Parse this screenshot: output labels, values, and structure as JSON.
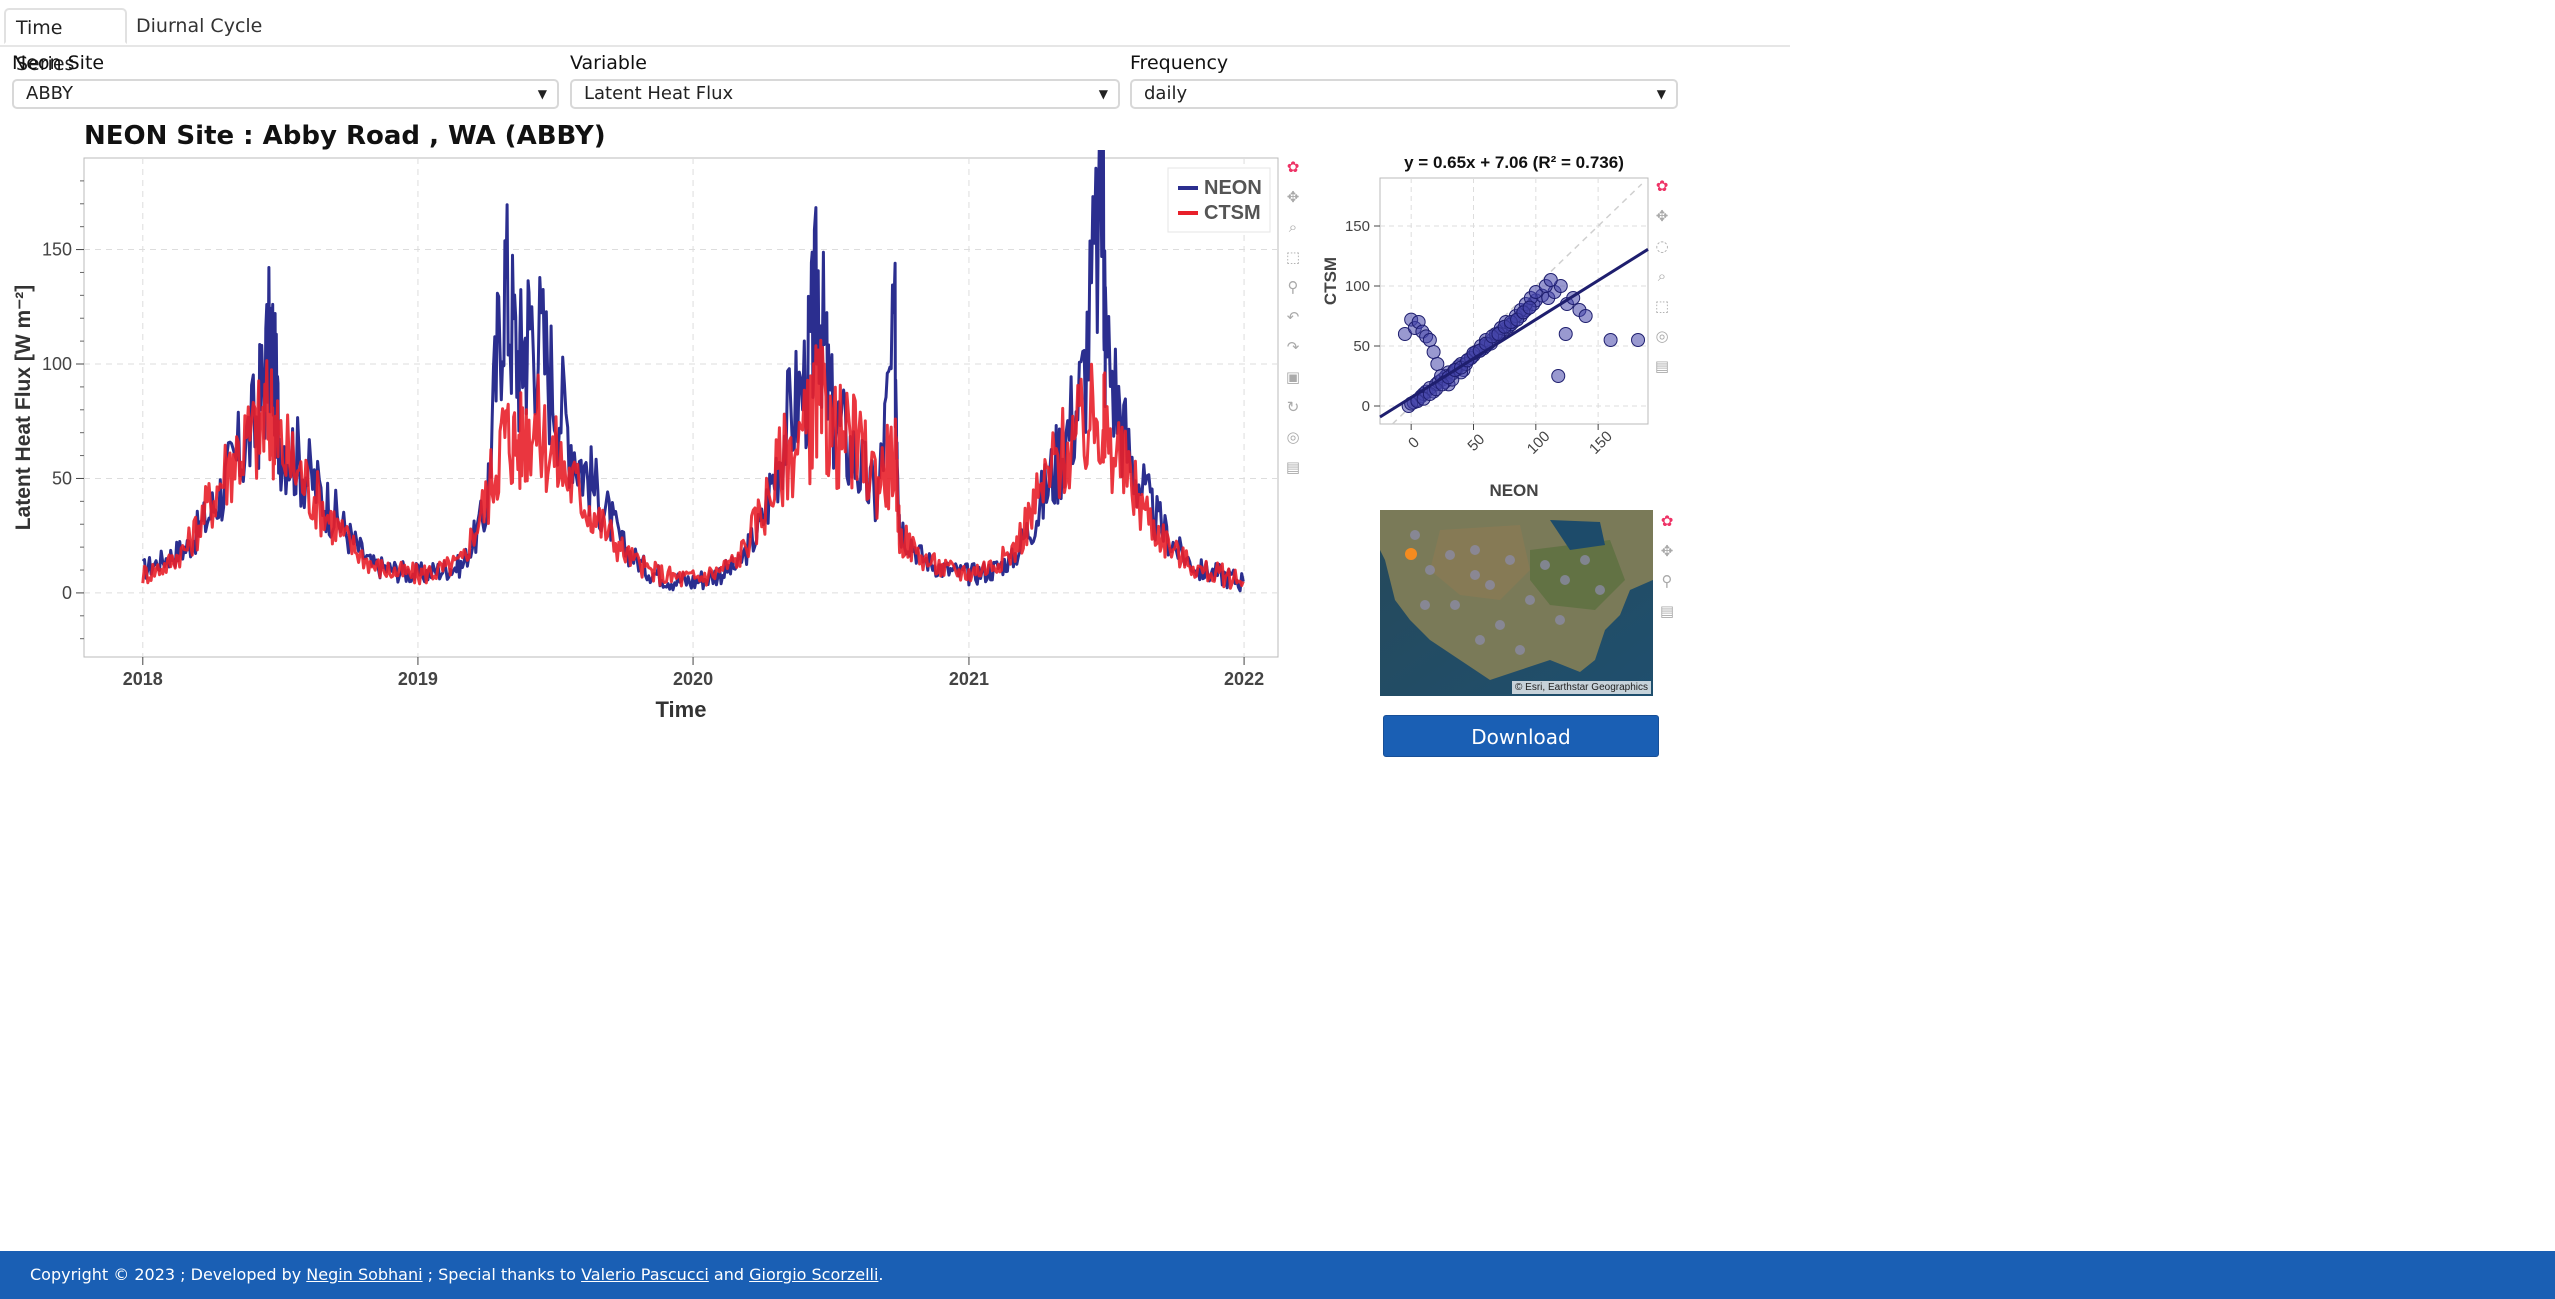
{
  "tabs": [
    {
      "label": "Time Series",
      "active": true
    },
    {
      "label": "Diurnal Cycle",
      "active": false
    }
  ],
  "controls": {
    "site": {
      "label": "Neon Site",
      "value": "ABBY"
    },
    "variable": {
      "label": "Variable",
      "value": "Latent Heat Flux"
    },
    "frequency": {
      "label": "Frequency",
      "value": "daily"
    }
  },
  "main_plot": {
    "title": "NEON Site : Abby Road , WA (ABBY)",
    "xlabel": "Time",
    "ylabel": "Latent Heat Flux [W m⁻²]",
    "legend": [
      "NEON",
      "CTSM"
    ]
  },
  "scatter_plot": {
    "title": "y = 0.65x + 7.06 (R² = 0.736)",
    "xlabel": "NEON",
    "ylabel": "CTSM"
  },
  "map": {
    "attribution": "© Esri, Earthstar Geographics"
  },
  "download": {
    "label": "Download"
  },
  "footer": {
    "prefix": "Copyright © 2023 ; Developed by ",
    "author": "Negin Sobhani",
    "middle": " ; Special thanks to ",
    "thanks1": "Valerio Pascucci",
    "and": " and ",
    "thanks2": "Giorgio Scorzelli",
    "suffix": "."
  },
  "colors": {
    "neon": "#2b2e8f",
    "ctsm": "#e8202a",
    "accent": "#1a5fb4",
    "toolbar_active": "#26b5e6"
  },
  "icons": [
    "bokeh-logo-icon",
    "pan-icon",
    "box-zoom-icon",
    "wheel-zoom-icon",
    "box-select-icon",
    "lasso-icon",
    "undo-icon",
    "redo-icon",
    "save-icon",
    "reset-icon",
    "crosshair-icon",
    "hover-icon"
  ],
  "chart_data": [
    {
      "type": "line",
      "title": "NEON Site : Abby Road , WA (ABBY)",
      "xlabel": "Time",
      "ylabel": "Latent Heat Flux [W m⁻²]",
      "xlim": [
        "2017-10-15",
        "2022-02-15"
      ],
      "ylim": [
        -28,
        190
      ],
      "x_ticks": [
        "2018",
        "2019",
        "2020",
        "2021",
        "2022"
      ],
      "y_ticks": [
        0,
        50,
        100,
        150
      ],
      "grid": true,
      "legend_position": "top-right",
      "series": [
        {
          "name": "NEON",
          "color": "#2b2e8f",
          "x": [
            "2018-01-01",
            "2018-02-01",
            "2018-03-01",
            "2018-04-01",
            "2018-05-01",
            "2018-06-01",
            "2018-06-20",
            "2018-07-01",
            "2018-08-01",
            "2018-09-01",
            "2018-10-01",
            "2018-11-01",
            "2018-12-01",
            "2019-01-01",
            "2019-02-01",
            "2019-03-01",
            "2019-04-01",
            "2019-04-25",
            "2019-05-15",
            "2019-06-01",
            "2019-07-01",
            "2019-08-01",
            "2019-09-01",
            "2019-10-01",
            "2019-11-01",
            "2019-12-01",
            "2020-01-01",
            "2020-02-01",
            "2020-03-01",
            "2020-04-01",
            "2020-05-01",
            "2020-06-01",
            "2020-06-15",
            "2020-07-01",
            "2020-08-01",
            "2020-09-01",
            "2020-09-25",
            "2020-10-01",
            "2020-11-01",
            "2020-12-01",
            "2021-01-01",
            "2021-02-01",
            "2021-03-01",
            "2021-04-01",
            "2021-05-01",
            "2021-06-01",
            "2021-06-28",
            "2021-07-01",
            "2021-08-01",
            "2021-09-01",
            "2021-10-01",
            "2021-11-01",
            "2021-12-01",
            "2021-12-31"
          ],
          "y": [
            10,
            15,
            20,
            35,
            55,
            75,
            112,
            70,
            55,
            40,
            25,
            12,
            10,
            8,
            10,
            12,
            35,
            140,
            100,
            120,
            90,
            60,
            40,
            20,
            10,
            6,
            5,
            8,
            12,
            30,
            70,
            95,
            135,
            80,
            60,
            40,
            110,
            30,
            15,
            10,
            8,
            10,
            15,
            35,
            60,
            90,
            178,
            110,
            60,
            35,
            20,
            10,
            8,
            5
          ]
        },
        {
          "name": "CTSM",
          "color": "#e8202a",
          "x": [
            "2018-01-01",
            "2018-02-01",
            "2018-03-01",
            "2018-04-01",
            "2018-05-01",
            "2018-06-01",
            "2018-06-20",
            "2018-07-01",
            "2018-08-01",
            "2018-09-01",
            "2018-10-01",
            "2018-11-01",
            "2018-12-01",
            "2019-01-01",
            "2019-02-01",
            "2019-03-01",
            "2019-04-01",
            "2019-04-25",
            "2019-05-15",
            "2019-06-01",
            "2019-07-01",
            "2019-08-01",
            "2019-09-01",
            "2019-10-01",
            "2019-11-01",
            "2019-12-01",
            "2020-01-01",
            "2020-02-01",
            "2020-03-01",
            "2020-04-01",
            "2020-05-01",
            "2020-06-01",
            "2020-06-15",
            "2020-07-01",
            "2020-08-01",
            "2020-09-01",
            "2020-09-25",
            "2020-10-01",
            "2020-11-01",
            "2020-12-01",
            "2021-01-01",
            "2021-02-01",
            "2021-03-01",
            "2021-04-01",
            "2021-05-01",
            "2021-06-01",
            "2021-06-28",
            "2021-07-01",
            "2021-08-01",
            "2021-09-01",
            "2021-10-01",
            "2021-11-01",
            "2021-12-01",
            "2021-12-31"
          ],
          "y": [
            8,
            12,
            20,
            40,
            60,
            70,
            80,
            65,
            50,
            35,
            22,
            12,
            9,
            8,
            10,
            14,
            40,
            70,
            65,
            75,
            60,
            45,
            30,
            18,
            10,
            7,
            6,
            9,
            15,
            35,
            60,
            70,
            85,
            70,
            65,
            50,
            60,
            25,
            15,
            10,
            9,
            12,
            18,
            40,
            60,
            70,
            80,
            70,
            50,
            30,
            18,
            10,
            8,
            5
          ]
        }
      ]
    },
    {
      "type": "scatter",
      "title": "y = 0.65x + 7.06 (R² = 0.736)",
      "xlabel": "NEON",
      "ylabel": "CTSM",
      "xlim": [
        -25,
        190
      ],
      "ylim": [
        -15,
        190
      ],
      "x_ticks": [
        0,
        50,
        100,
        150
      ],
      "y_ticks": [
        0,
        50,
        100,
        150
      ],
      "grid": true,
      "fit": {
        "slope": 0.65,
        "intercept": 7.06
      },
      "points": {
        "x": [
          -2,
          2,
          5,
          8,
          10,
          12,
          15,
          18,
          20,
          22,
          25,
          28,
          30,
          33,
          35,
          38,
          40,
          42,
          45,
          48,
          50,
          52,
          55,
          58,
          60,
          62,
          65,
          68,
          70,
          72,
          75,
          78,
          80,
          82,
          85,
          88,
          90,
          92,
          95,
          98,
          100,
          105,
          110,
          115,
          120,
          125,
          130,
          135,
          140,
          160,
          -5,
          0,
          3,
          6,
          9,
          12,
          15,
          18,
          21,
          24,
          27,
          30,
          33,
          36,
          40,
          44,
          48,
          52,
          56,
          60,
          64,
          68,
          72,
          76,
          80,
          84,
          88,
          92,
          96,
          100,
          108,
          112,
          118,
          124,
          182,
          0,
          5,
          10,
          15,
          20,
          25,
          30,
          35,
          40,
          45,
          50,
          55,
          60,
          65,
          70,
          75,
          80,
          85,
          90,
          95
        ],
        "y": [
          0,
          3,
          5,
          8,
          10,
          12,
          15,
          12,
          18,
          20,
          22,
          25,
          28,
          27,
          30,
          33,
          35,
          30,
          38,
          40,
          42,
          45,
          46,
          48,
          50,
          52,
          55,
          58,
          60,
          62,
          64,
          66,
          68,
          70,
          72,
          75,
          78,
          80,
          82,
          85,
          88,
          92,
          90,
          95,
          100,
          85,
          90,
          80,
          75,
          55,
          60,
          72,
          65,
          70,
          62,
          58,
          55,
          45,
          35,
          25,
          20,
          18,
          22,
          30,
          28,
          35,
          40,
          45,
          50,
          55,
          52,
          60,
          65,
          70,
          68,
          75,
          80,
          85,
          90,
          95,
          100,
          105,
          25,
          60,
          55,
          2,
          4,
          6,
          10,
          14,
          18,
          24,
          30,
          32,
          38,
          44,
          46,
          52,
          58,
          60,
          66,
          70,
          72,
          78,
          82
        ]
      }
    }
  ]
}
